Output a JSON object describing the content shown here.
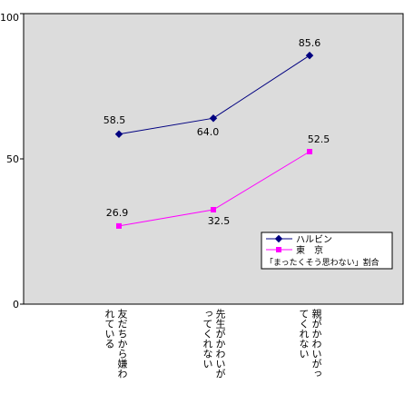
{
  "chart_data": {
    "type": "line",
    "categories": [
      [
        "友だちから嫌われている"
      ],
      [
        "先生がかわいがってくれない"
      ],
      [
        "親がかわいがってくれない"
      ]
    ],
    "category_columns": [
      [
        "友だちから嫌わ",
        "れている"
      ],
      [
        "先生がかわいが",
        "ってくれない"
      ],
      [
        "親がかわいがっ",
        "てくれない"
      ]
    ],
    "series": [
      {
        "name": "ハルビン",
        "values": [
          58.5,
          64.0,
          85.6
        ],
        "value_labels": [
          "58.5",
          "64.0",
          "85.6"
        ],
        "color": "#000080",
        "marker": "diamond"
      },
      {
        "name": "東　京",
        "values": [
          26.9,
          32.5,
          52.5
        ],
        "value_labels": [
          "26.9",
          "32.5",
          "52.5"
        ],
        "color": "#ff00ff",
        "marker": "square"
      }
    ],
    "ylim": [
      0,
      100
    ],
    "yticks": [
      "0",
      "50",
      "100"
    ],
    "legend_note": "「まったくそう思わない」割合",
    "legend_position": "bottom-right",
    "plot_background": "#dcdcdc",
    "grid": false
  }
}
